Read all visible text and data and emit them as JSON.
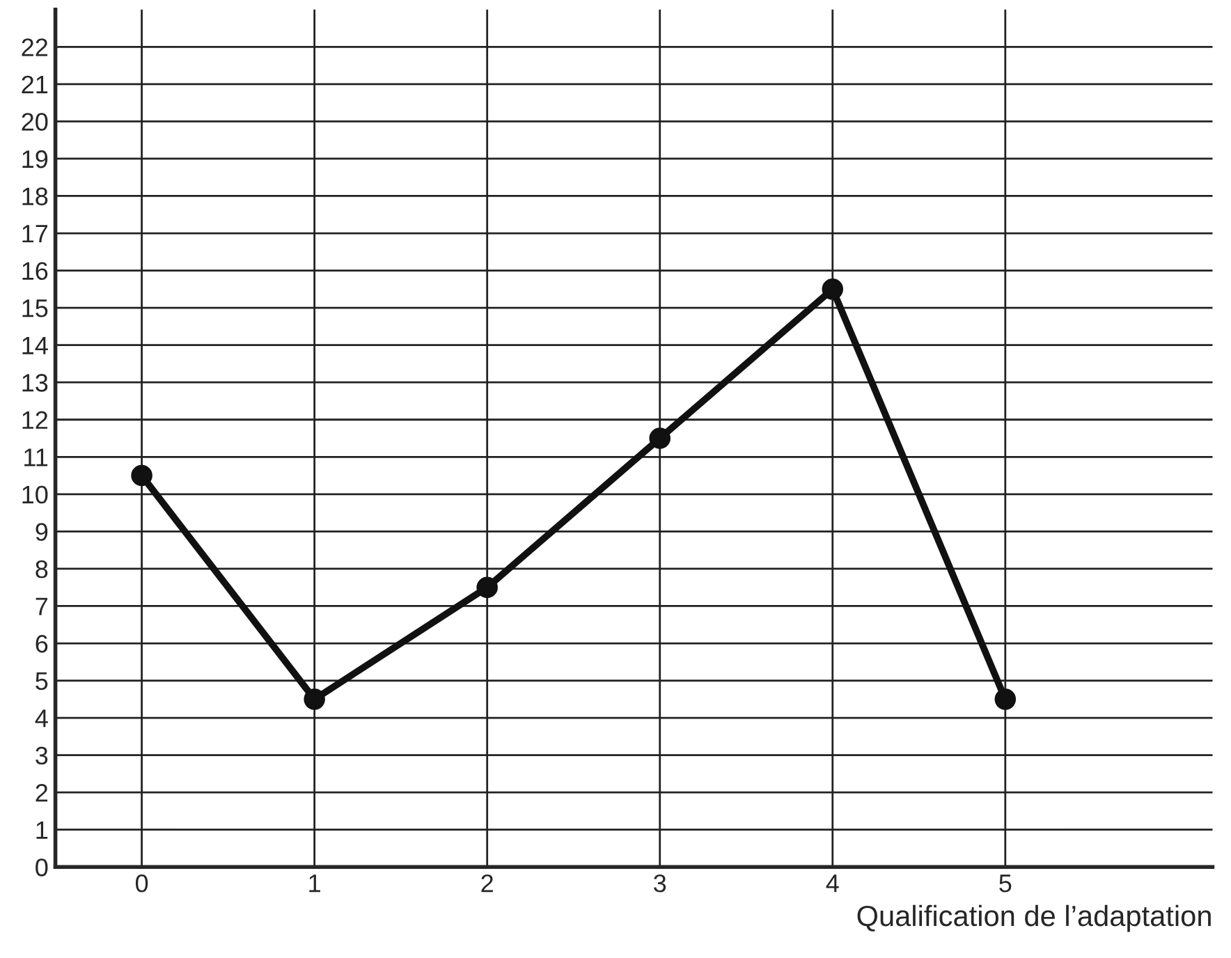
{
  "chart_data": {
    "type": "line",
    "xlabel": "Qualification de l’adaptation",
    "x": [
      0,
      1,
      2,
      3,
      4,
      5
    ],
    "series": [
      {
        "color": "#111111",
        "values": [
          10.5,
          4.5,
          7.5,
          11.5,
          15.5,
          4.5
        ]
      }
    ],
    "xlim": [
      -0.5,
      6.2
    ],
    "xticks": [
      0,
      1,
      2,
      3,
      4,
      5
    ],
    "ylim": [
      0,
      23
    ],
    "yticks": [
      0,
      1,
      2,
      3,
      4,
      5,
      6,
      7,
      8,
      9,
      10,
      11,
      12,
      13,
      14,
      15,
      16,
      17,
      18,
      19,
      20,
      21,
      22
    ],
    "grid": true,
    "marker": "circle",
    "line_style": "solid"
  }
}
